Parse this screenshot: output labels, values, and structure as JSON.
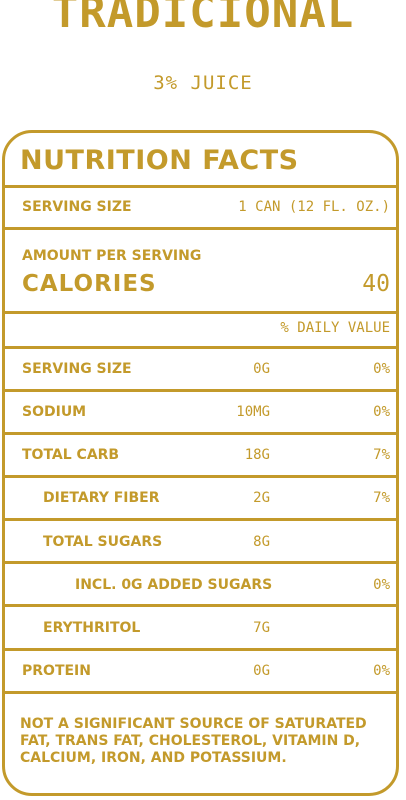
{
  "product": {
    "title": "TRADICIONAL",
    "subtitle": "3% JUICE"
  },
  "panel": {
    "header": "NUTRITION FACTS",
    "serving": {
      "label": "SERVING SIZE",
      "value": "1 CAN (12 FL. OZ.)"
    },
    "amount_per_serving": "AMOUNT PER SERVING",
    "calories": {
      "label": "CALORIES",
      "value": "40"
    },
    "daily_value_header": "% DAILY VALUE",
    "rows": [
      {
        "label": "SERVING SIZE",
        "amount": "0G",
        "dv": "0%"
      },
      {
        "label": "SODIUM",
        "amount": "10MG",
        "dv": "0%"
      },
      {
        "label": "TOTAL CARB",
        "amount": "18G",
        "dv": "7%"
      },
      {
        "label": "DIETARY FIBER",
        "amount": "2G",
        "dv": "7%"
      },
      {
        "label": "TOTAL SUGARS",
        "amount": "8G",
        "dv": ""
      },
      {
        "label": "INCL. 0G ADDED SUGARS",
        "amount": "",
        "dv": "0%"
      },
      {
        "label": "ERYTHRITOL",
        "amount": "7G",
        "dv": ""
      },
      {
        "label": "PROTEIN",
        "amount": "0G",
        "dv": "0%"
      }
    ],
    "footnote": "NOT A SIGNIFICANT SOURCE OF SATURATED FAT, TRANS FAT, CHOLESTEROL, VITAMIN D, CALCIUM, IRON, AND POTASSIUM."
  },
  "colors": {
    "accent": "#c39a2b",
    "background": "#ffffff"
  }
}
